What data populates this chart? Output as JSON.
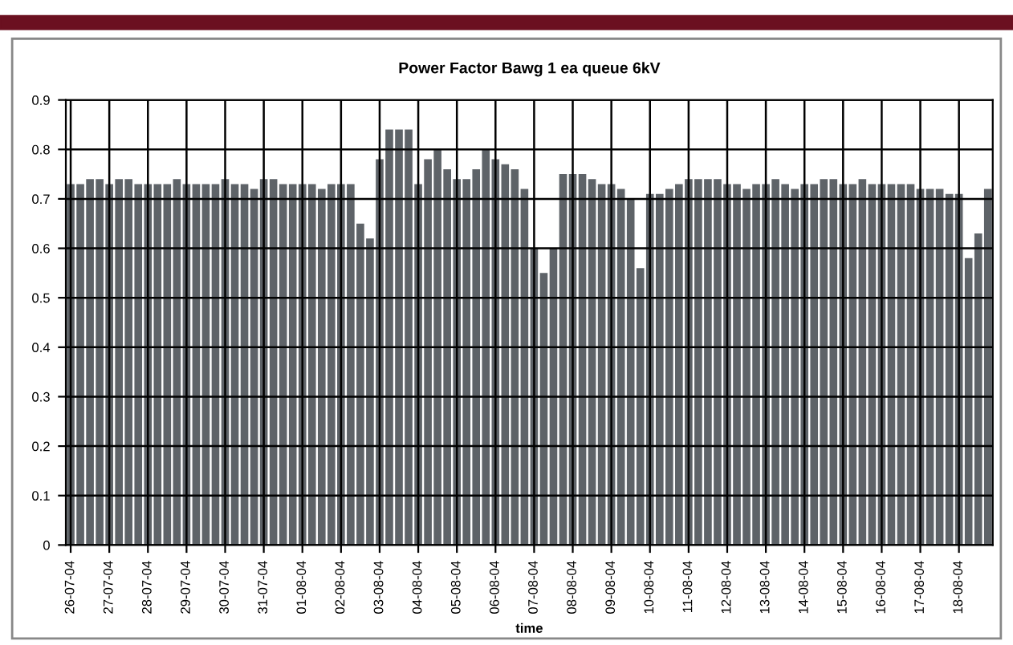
{
  "chart_data": {
    "type": "bar",
    "title": "Power Factor Bawg 1 ea queue 6kV",
    "xlabel": "time",
    "categories": [
      "26-07-04",
      null,
      null,
      null,
      "27-07-04",
      null,
      null,
      null,
      "28-07-04",
      null,
      null,
      null,
      "29-07-04",
      null,
      null,
      null,
      "30-07-04",
      null,
      null,
      null,
      "31-07-04",
      null,
      null,
      null,
      "01-08-04",
      null,
      null,
      null,
      "02-08-04",
      null,
      null,
      null,
      "03-08-04",
      null,
      null,
      null,
      "04-08-04",
      null,
      null,
      null,
      "05-08-04",
      null,
      null,
      null,
      "06-08-04",
      null,
      null,
      null,
      "07-08-04",
      null,
      null,
      null,
      "08-08-04",
      null,
      null,
      null,
      "09-08-04",
      null,
      null,
      null,
      "10-08-04",
      null,
      null,
      null,
      "11-08-04",
      null,
      null,
      null,
      "12-08-04",
      null,
      null,
      null,
      "13-08-04",
      null,
      null,
      null,
      "14-08-04",
      null,
      null,
      null,
      "15-08-04",
      null,
      null,
      null,
      "16-08-04",
      null,
      null,
      null,
      "17-08-04",
      null,
      null,
      null,
      "18-08-04",
      null,
      null,
      null
    ],
    "values": [
      0.73,
      0.73,
      0.74,
      0.74,
      0.73,
      0.74,
      0.74,
      0.73,
      0.73,
      0.73,
      0.73,
      0.74,
      0.73,
      0.73,
      0.73,
      0.73,
      0.74,
      0.73,
      0.73,
      0.72,
      0.74,
      0.74,
      0.73,
      0.73,
      0.73,
      0.73,
      0.72,
      0.73,
      0.73,
      0.73,
      0.65,
      0.62,
      0.78,
      0.84,
      0.84,
      0.84,
      0.73,
      0.78,
      0.8,
      0.76,
      0.74,
      0.74,
      0.76,
      0.8,
      0.78,
      0.77,
      0.76,
      0.72,
      0.6,
      0.55,
      0.6,
      0.75,
      0.75,
      0.75,
      0.74,
      0.73,
      0.73,
      0.72,
      0.7,
      0.56,
      0.71,
      0.71,
      0.72,
      0.73,
      0.74,
      0.74,
      0.74,
      0.74,
      0.73,
      0.73,
      0.72,
      0.73,
      0.73,
      0.74,
      0.73,
      0.72,
      0.73,
      0.73,
      0.74,
      0.74,
      0.73,
      0.73,
      0.74,
      0.73,
      0.73,
      0.73,
      0.73,
      0.73,
      0.72,
      0.72,
      0.72,
      0.71,
      0.71,
      0.58,
      0.63,
      0.72
    ],
    "color": "#5e6368",
    "ylim": [
      0,
      0.9
    ],
    "yticks": [
      0,
      0.1,
      0.2,
      0.3,
      0.4,
      0.5,
      0.6,
      0.7,
      0.8,
      0.9
    ],
    "grid": true
  }
}
